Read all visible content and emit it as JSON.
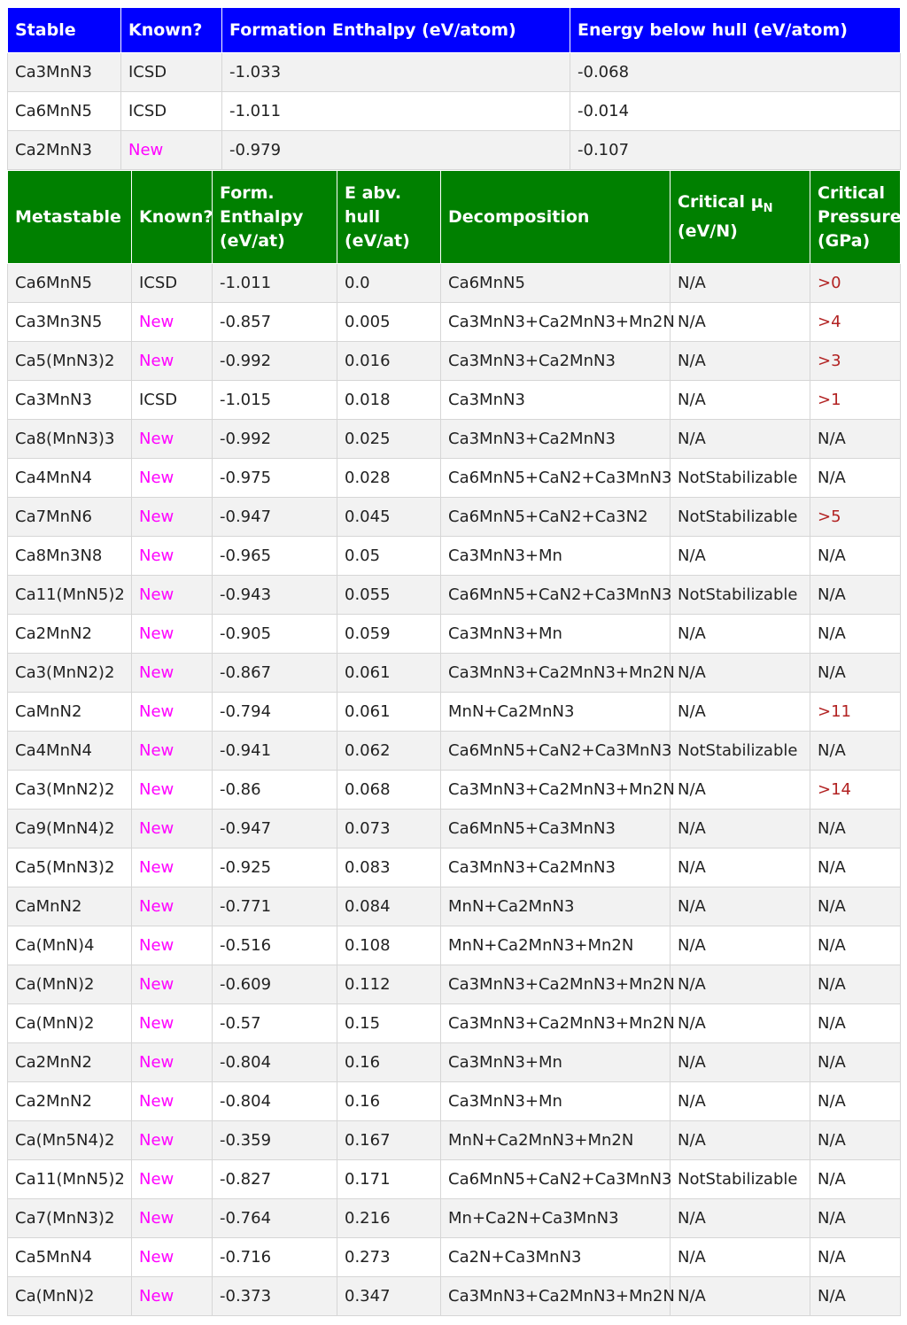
{
  "stable_table": {
    "headers": [
      "Stable",
      "Known?",
      "Formation Enthalpy (eV/atom)",
      "Energy below hull (eV/atom)"
    ],
    "rows": [
      {
        "formula": "Ca3MnN3",
        "known": "ICSD",
        "enthalpy": "-1.033",
        "below_hull": "-0.068"
      },
      {
        "formula": "Ca6MnN5",
        "known": "ICSD",
        "enthalpy": "-1.011",
        "below_hull": "-0.014"
      },
      {
        "formula": "Ca2MnN3",
        "known": "New",
        "enthalpy": "-0.979",
        "below_hull": "-0.107"
      }
    ]
  },
  "meta_table": {
    "headers": {
      "metastable": "Metastable",
      "known": "Known?",
      "form_enthalpy": "Form. Enthalpy (eV/at)",
      "e_abv_hull": "E abv. hull (eV/at)",
      "decomposition": "Decomposition",
      "critical_mu_main": "Critical μ",
      "critical_mu_sub": "N",
      "critical_mu_unit": "(eV/N)",
      "critical_pressure": "Critical Pressure (GPa)"
    },
    "rows": [
      {
        "formula": "Ca6MnN5",
        "known": "ICSD",
        "enthalpy": "-1.011",
        "hull": "0.0",
        "decomp": "Ca6MnN5",
        "mu": "N/A",
        "pressure": ">0"
      },
      {
        "formula": "Ca3Mn3N5",
        "known": "New",
        "enthalpy": "-0.857",
        "hull": "0.005",
        "decomp": "Ca3MnN3+Ca2MnN3+Mn2N",
        "mu": "N/A",
        "pressure": ">4"
      },
      {
        "formula": "Ca5(MnN3)2",
        "known": "New",
        "enthalpy": "-0.992",
        "hull": "0.016",
        "decomp": "Ca3MnN3+Ca2MnN3",
        "mu": "N/A",
        "pressure": ">3"
      },
      {
        "formula": "Ca3MnN3",
        "known": "ICSD",
        "enthalpy": "-1.015",
        "hull": "0.018",
        "decomp": "Ca3MnN3",
        "mu": "N/A",
        "pressure": ">1"
      },
      {
        "formula": "Ca8(MnN3)3",
        "known": "New",
        "enthalpy": "-0.992",
        "hull": "0.025",
        "decomp": "Ca3MnN3+Ca2MnN3",
        "mu": "N/A",
        "pressure": "N/A"
      },
      {
        "formula": "Ca4MnN4",
        "known": "New",
        "enthalpy": "-0.975",
        "hull": "0.028",
        "decomp": "Ca6MnN5+CaN2+Ca3MnN3",
        "mu": "NotStabilizable",
        "pressure": "N/A"
      },
      {
        "formula": "Ca7MnN6",
        "known": "New",
        "enthalpy": "-0.947",
        "hull": "0.045",
        "decomp": "Ca6MnN5+CaN2+Ca3N2",
        "mu": "NotStabilizable",
        "pressure": ">5"
      },
      {
        "formula": "Ca8Mn3N8",
        "known": "New",
        "enthalpy": "-0.965",
        "hull": "0.05",
        "decomp": "Ca3MnN3+Mn",
        "mu": "N/A",
        "pressure": "N/A"
      },
      {
        "formula": "Ca11(MnN5)2",
        "known": "New",
        "enthalpy": "-0.943",
        "hull": "0.055",
        "decomp": "Ca6MnN5+CaN2+Ca3MnN3",
        "mu": "NotStabilizable",
        "pressure": "N/A"
      },
      {
        "formula": "Ca2MnN2",
        "known": "New",
        "enthalpy": "-0.905",
        "hull": "0.059",
        "decomp": "Ca3MnN3+Mn",
        "mu": "N/A",
        "pressure": "N/A"
      },
      {
        "formula": "Ca3(MnN2)2",
        "known": "New",
        "enthalpy": "-0.867",
        "hull": "0.061",
        "decomp": "Ca3MnN3+Ca2MnN3+Mn2N",
        "mu": "N/A",
        "pressure": "N/A"
      },
      {
        "formula": "CaMnN2",
        "known": "New",
        "enthalpy": "-0.794",
        "hull": "0.061",
        "decomp": "MnN+Ca2MnN3",
        "mu": "N/A",
        "pressure": ">11"
      },
      {
        "formula": "Ca4MnN4",
        "known": "New",
        "enthalpy": "-0.941",
        "hull": "0.062",
        "decomp": "Ca6MnN5+CaN2+Ca3MnN3",
        "mu": "NotStabilizable",
        "pressure": "N/A"
      },
      {
        "formula": "Ca3(MnN2)2",
        "known": "New",
        "enthalpy": "-0.86",
        "hull": "0.068",
        "decomp": "Ca3MnN3+Ca2MnN3+Mn2N",
        "mu": "N/A",
        "pressure": ">14"
      },
      {
        "formula": "Ca9(MnN4)2",
        "known": "New",
        "enthalpy": "-0.947",
        "hull": "0.073",
        "decomp": "Ca6MnN5+Ca3MnN3",
        "mu": "N/A",
        "pressure": "N/A"
      },
      {
        "formula": "Ca5(MnN3)2",
        "known": "New",
        "enthalpy": "-0.925",
        "hull": "0.083",
        "decomp": "Ca3MnN3+Ca2MnN3",
        "mu": "N/A",
        "pressure": "N/A"
      },
      {
        "formula": "CaMnN2",
        "known": "New",
        "enthalpy": "-0.771",
        "hull": "0.084",
        "decomp": "MnN+Ca2MnN3",
        "mu": "N/A",
        "pressure": "N/A"
      },
      {
        "formula": "Ca(MnN)4",
        "known": "New",
        "enthalpy": "-0.516",
        "hull": "0.108",
        "decomp": "MnN+Ca2MnN3+Mn2N",
        "mu": "N/A",
        "pressure": "N/A"
      },
      {
        "formula": "Ca(MnN)2",
        "known": "New",
        "enthalpy": "-0.609",
        "hull": "0.112",
        "decomp": "Ca3MnN3+Ca2MnN3+Mn2N",
        "mu": "N/A",
        "pressure": "N/A"
      },
      {
        "formula": "Ca(MnN)2",
        "known": "New",
        "enthalpy": "-0.57",
        "hull": "0.15",
        "decomp": "Ca3MnN3+Ca2MnN3+Mn2N",
        "mu": "N/A",
        "pressure": "N/A"
      },
      {
        "formula": "Ca2MnN2",
        "known": "New",
        "enthalpy": "-0.804",
        "hull": "0.16",
        "decomp": "Ca3MnN3+Mn",
        "mu": "N/A",
        "pressure": "N/A"
      },
      {
        "formula": "Ca2MnN2",
        "known": "New",
        "enthalpy": "-0.804",
        "hull": "0.16",
        "decomp": "Ca3MnN3+Mn",
        "mu": "N/A",
        "pressure": "N/A"
      },
      {
        "formula": "Ca(Mn5N4)2",
        "known": "New",
        "enthalpy": "-0.359",
        "hull": "0.167",
        "decomp": "MnN+Ca2MnN3+Mn2N",
        "mu": "N/A",
        "pressure": "N/A"
      },
      {
        "formula": "Ca11(MnN5)2",
        "known": "New",
        "enthalpy": "-0.827",
        "hull": "0.171",
        "decomp": "Ca6MnN5+CaN2+Ca3MnN3",
        "mu": "NotStabilizable",
        "pressure": "N/A"
      },
      {
        "formula": "Ca7(MnN3)2",
        "known": "New",
        "enthalpy": "-0.764",
        "hull": "0.216",
        "decomp": "Mn+Ca2N+Ca3MnN3",
        "mu": "N/A",
        "pressure": "N/A"
      },
      {
        "formula": "Ca5MnN4",
        "known": "New",
        "enthalpy": "-0.716",
        "hull": "0.273",
        "decomp": "Ca2N+Ca3MnN3",
        "mu": "N/A",
        "pressure": "N/A"
      },
      {
        "formula": "Ca(MnN)2",
        "known": "New",
        "enthalpy": "-0.373",
        "hull": "0.347",
        "decomp": "Ca3MnN3+Ca2MnN3+Mn2N",
        "mu": "N/A",
        "pressure": "N/A"
      }
    ]
  },
  "colors": {
    "stable_header": "#0000ff",
    "meta_header": "#008000",
    "new_label": "#ff00ff",
    "pressure_value": "#b22222",
    "row_stripe": "#f2f2f2"
  }
}
